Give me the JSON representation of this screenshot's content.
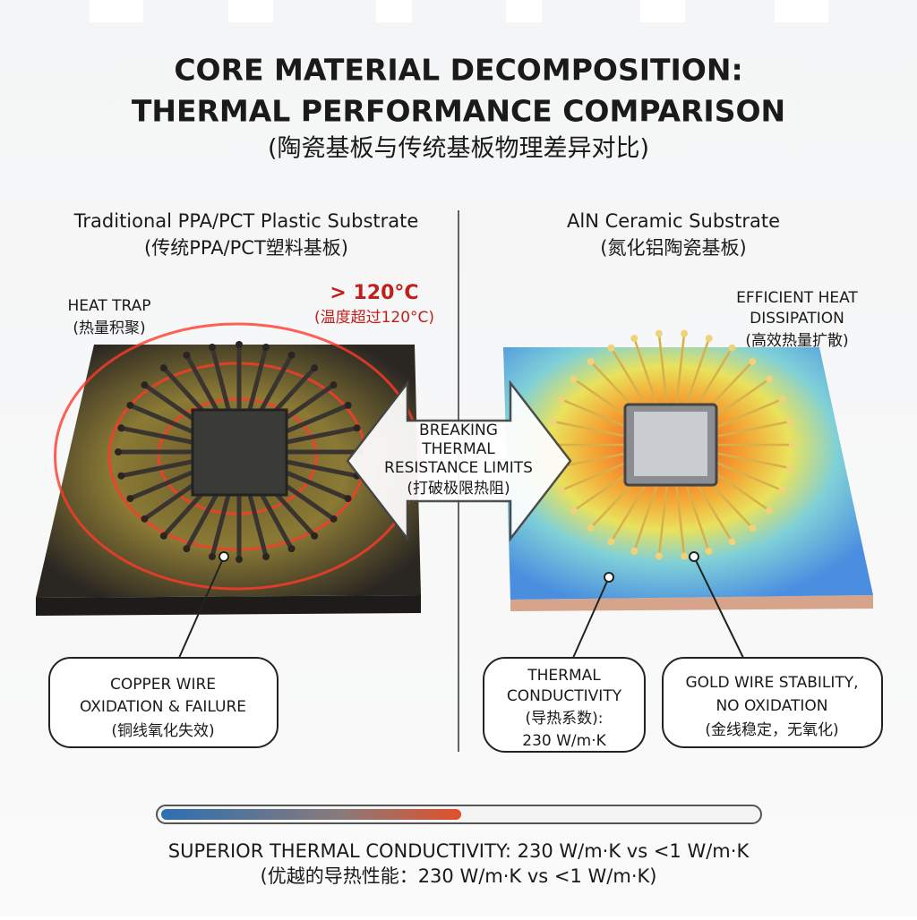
{
  "header": {
    "title_lines": [
      "CORE MATERIAL DECOMPOSITION:",
      "THERMAL PERFORMANCE COMPARISON"
    ],
    "subtitle": "(陶瓷基板与传统基板物理差异对比)"
  },
  "left": {
    "heading": "Traditional PPA/PCT Plastic Substrate",
    "heading_cn": "(传统PPA/PCT塑料基板)",
    "heat_label": [
      "HEAT TRAP",
      "(热量积聚)"
    ],
    "temp_label": [
      "> 120°C",
      "(温度超过120°C)"
    ],
    "callout": [
      "COPPER WIRE",
      "OXIDATION & FAILURE",
      "(铜线氧化失效)"
    ]
  },
  "right": {
    "heading": "AlN Ceramic Substrate",
    "heading_cn": "(氮化铝陶瓷基板)",
    "heat_label": [
      "EFFICIENT HEAT",
      "DISSIPATION",
      "(高效热量扩散)"
    ],
    "callout_conductivity": [
      "THERMAL",
      "CONDUCTIVITY",
      "(导热系数):",
      "230 W/m·K"
    ],
    "callout_gold": [
      "GOLD WIRE STABILITY,",
      "NO OXIDATION",
      "(金线稳定，无氧化)"
    ]
  },
  "center_arrow": [
    "BREAKING",
    "THERMAL",
    "RESISTANCE LIMITS",
    "(打破极限热阻)"
  ],
  "footer": [
    "SUPERIOR THERMAL CONDUCTIVITY: 230 W/m·K vs <1 W/m·K",
    "(优越的导热性能：230 W/m·K vs <1 W/m·K)"
  ]
}
